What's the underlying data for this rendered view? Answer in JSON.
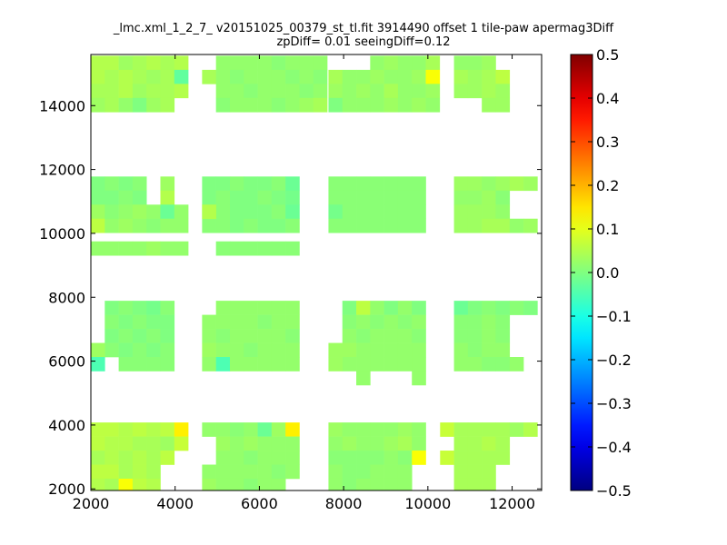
{
  "chart_data": {
    "type": "heatmap",
    "title": "_lmc.xml_1_2_7_ v20151025_00379_st_tl.fit 3914490 offset 1 tile-paw apermag3Diff",
    "subtitle": "zpDiff= 0.01 seeingDiff=0.12",
    "xlabel": "",
    "ylabel": "",
    "xlim": [
      2000,
      12700
    ],
    "ylim": [
      1950,
      15600
    ],
    "x_ticks": [
      "2000",
      "4000",
      "6000",
      "8000",
      "10000",
      "12000"
    ],
    "y_ticks": [
      "2000",
      "4000",
      "6000",
      "8000",
      "10000",
      "12000",
      "14000"
    ],
    "colorbar": {
      "colormap": "jet",
      "range": [
        -0.5,
        0.5
      ],
      "ticks": [
        "0.5",
        "0.4",
        "0.3",
        "0.2",
        "0.1",
        "0.0",
        "−0.1",
        "−0.2",
        "−0.3",
        "−0.4",
        "−0.5"
      ]
    },
    "cell_size": [
      330,
      440
    ],
    "blocks": [
      {
        "x0": 2000,
        "y_top": 15560,
        "cols": 7,
        "rows": 4,
        "values": [
          [
            0.05,
            0.05,
            0.03,
            0.04,
            0.05,
            0.04,
            0.05
          ],
          [
            0.05,
            0.04,
            0.05,
            0.04,
            0.03,
            0.04,
            -0.03
          ],
          [
            0.04,
            0.04,
            0.05,
            0.03,
            0.04,
            0.04,
            0.05
          ],
          [
            0.03,
            0.04,
            0.02,
            0.0,
            0.03,
            0.04,
            null
          ]
        ]
      },
      {
        "x0": 2000,
        "y_top": 11780,
        "cols": 7,
        "rows": 4,
        "values": [
          [
            0.0,
            0.01,
            0.0,
            0.01,
            null,
            0.03,
            null
          ],
          [
            0.0,
            0.0,
            0.01,
            0.0,
            null,
            0.05,
            null
          ],
          [
            0.03,
            0.01,
            0.02,
            0.03,
            0.02,
            -0.02,
            0.02
          ],
          [
            0.06,
            0.02,
            0.03,
            0.02,
            0.01,
            0.02,
            0.02
          ]
        ]
      },
      {
        "x0": 2000,
        "y_top": 9750,
        "cols": 7,
        "rows": 1,
        "values": [
          [
            0.02,
            0.02,
            0.02,
            0.02,
            0.03,
            0.02,
            0.02
          ]
        ]
      },
      {
        "x0": 2330,
        "y_top": 7890,
        "cols": 5,
        "rows": 4,
        "values": [
          [
            0.0,
            0.01,
            0.0,
            -0.01,
            0.01
          ],
          [
            0.01,
            0.0,
            0.01,
            0.0,
            0.0
          ],
          [
            0.0,
            0.01,
            0.0,
            0.01,
            0.0
          ],
          [
            0.01,
            0.0,
            0.01,
            0.0,
            0.01
          ]
        ]
      },
      {
        "x0": 2000,
        "y_top": 6570,
        "cols": 1,
        "rows": 2,
        "values": [
          [
            0.03
          ],
          [
            -0.05
          ]
        ]
      },
      {
        "x0": 2660,
        "y_top": 6130,
        "cols": 4,
        "rows": 1,
        "values": [
          [
            0.01,
            0.01,
            0.01,
            0.01
          ]
        ]
      },
      {
        "x0": 2000,
        "y_top": 4080,
        "cols": 6,
        "rows": 3,
        "values": [
          [
            0.06,
            0.06,
            0.05,
            0.06,
            0.05,
            0.06
          ],
          [
            0.06,
            0.05,
            0.05,
            0.04,
            0.04,
            0.03
          ],
          [
            0.04,
            0.05,
            0.04,
            0.05,
            0.04,
            0.06
          ]
        ]
      },
      {
        "x0": 3980,
        "y_top": 4080,
        "cols": 1,
        "rows": 1,
        "values": [
          [
            0.14
          ]
        ]
      },
      {
        "x0": 3980,
        "y_top": 3640,
        "cols": 1,
        "rows": 1,
        "values": [
          [
            0.07
          ]
        ]
      },
      {
        "x0": 2000,
        "y_top": 2760,
        "cols": 5,
        "rows": 2,
        "values": [
          [
            0.06,
            0.06,
            0.04,
            0.05,
            0.04
          ],
          [
            0.05,
            0.04,
            0.12,
            0.06,
            0.05
          ]
        ]
      },
      {
        "x0": 4640,
        "y_top": 15120,
        "cols": 1,
        "rows": 1,
        "values": [
          [
            0.04
          ]
        ]
      },
      {
        "x0": 4970,
        "y_top": 15560,
        "cols": 8,
        "rows": 4,
        "values": [
          [
            0.02,
            0.02,
            0.02,
            0.02,
            0.01,
            0.02,
            0.02,
            0.02
          ],
          [
            0.02,
            0.01,
            0.02,
            0.02,
            0.02,
            0.01,
            0.02,
            0.01
          ],
          [
            0.02,
            0.02,
            0.01,
            0.02,
            0.02,
            0.02,
            0.01,
            0.02
          ],
          [
            0.01,
            0.02,
            0.02,
            0.02,
            0.01,
            0.02,
            0.03,
            0.04
          ]
        ]
      },
      {
        "x0": 4640,
        "y_top": 11780,
        "cols": 7,
        "rows": 4,
        "values": [
          [
            0.0,
            0.0,
            0.01,
            0.0,
            0.0,
            0.01,
            -0.02
          ],
          [
            0.0,
            0.01,
            0.0,
            0.0,
            0.01,
            0.0,
            -0.01
          ],
          [
            0.01,
            0.01,
            0.0,
            0.0,
            0.0,
            0.01,
            -0.02
          ],
          [
            0.01,
            0.01,
            0.0,
            0.01,
            0.0,
            0.0,
            0.01
          ]
        ]
      },
      {
        "x0": 4640,
        "y_top": 10900,
        "cols": 1,
        "rows": 1,
        "values": [
          [
            0.05
          ]
        ]
      },
      {
        "x0": 4970,
        "y_top": 9750,
        "cols": 6,
        "rows": 1,
        "values": [
          [
            0.01,
            0.01,
            0.01,
            0.01,
            0.01,
            0.01
          ]
        ]
      },
      {
        "x0": 4640,
        "y_top": 7890,
        "cols": 7,
        "rows": 5,
        "values": [
          [
            null,
            0.02,
            0.02,
            0.02,
            0.02,
            0.02,
            0.02
          ],
          [
            0.02,
            0.02,
            0.02,
            0.02,
            0.01,
            0.02,
            0.02
          ],
          [
            0.02,
            0.01,
            0.02,
            0.02,
            0.02,
            0.02,
            0.01
          ],
          [
            0.03,
            0.02,
            0.02,
            0.01,
            0.02,
            0.02,
            0.02
          ],
          [
            0.02,
            -0.05,
            0.02,
            0.02,
            0.02,
            0.02,
            0.02
          ]
        ]
      },
      {
        "x0": 4640,
        "y_top": 4080,
        "cols": 7,
        "rows": 3,
        "values": [
          [
            0.02,
            0.02,
            0.01,
            0.02,
            -0.02,
            0.03,
            0.14
          ],
          [
            null,
            0.03,
            0.02,
            0.03,
            0.02,
            0.02,
            0.02
          ],
          [
            null,
            0.02,
            0.02,
            0.01,
            0.02,
            0.02,
            0.02
          ]
        ]
      },
      {
        "x0": 4640,
        "y_top": 2760,
        "cols": 7,
        "rows": 2,
        "values": [
          [
            0.02,
            0.02,
            0.02,
            0.02,
            0.02,
            0.01,
            0.02
          ],
          [
            0.03,
            0.02,
            0.02,
            0.01,
            0.02,
            0.02,
            null
          ]
        ]
      },
      {
        "x0": 7640,
        "y_top": 15560,
        "cols": 8,
        "rows": 4,
        "values": [
          [
            null,
            null,
            null,
            0.02,
            0.03,
            0.02,
            0.02,
            0.04
          ],
          [
            0.04,
            0.02,
            0.02,
            0.03,
            0.02,
            0.02,
            0.03,
            0.12
          ],
          [
            0.03,
            0.02,
            0.03,
            0.02,
            0.04,
            0.02,
            0.02,
            0.03
          ],
          [
            0.0,
            0.02,
            0.02,
            0.02,
            0.03,
            0.02,
            0.03,
            0.02
          ]
        ]
      },
      {
        "x0": 7640,
        "y_top": 11780,
        "cols": 7,
        "rows": 4,
        "values": [
          [
            0.01,
            0.01,
            0.01,
            0.01,
            0.01,
            0.01,
            0.01
          ],
          [
            0.01,
            0.01,
            0.01,
            0.01,
            0.01,
            0.01,
            0.01
          ],
          [
            -0.01,
            0.01,
            0.01,
            0.01,
            0.01,
            0.01,
            0.01
          ],
          [
            0.01,
            0.01,
            0.01,
            0.01,
            0.01,
            0.01,
            0.01
          ]
        ]
      },
      {
        "x0": 7970,
        "y_top": 7890,
        "cols": 6,
        "rows": 5,
        "values": [
          [
            0.0,
            0.06,
            0.02,
            0.0,
            0.02,
            0.0
          ],
          [
            0.01,
            0.02,
            0.01,
            0.02,
            0.01,
            0.02
          ],
          [
            0.02,
            0.01,
            0.02,
            0.02,
            0.02,
            0.01
          ],
          [
            0.03,
            0.02,
            0.02,
            0.02,
            0.02,
            0.02
          ],
          [
            0.02,
            0.02,
            0.02,
            0.02,
            0.02,
            0.02
          ]
        ]
      },
      {
        "x0": 7640,
        "y_top": 6570,
        "cols": 1,
        "rows": 2,
        "values": [
          [
            0.03
          ],
          [
            0.03
          ]
        ]
      },
      {
        "x0": 8300,
        "y_top": 5690,
        "cols": 1,
        "rows": 1,
        "values": [
          [
            0.02
          ]
        ]
      },
      {
        "x0": 9620,
        "y_top": 5690,
        "cols": 1,
        "rows": 1,
        "values": [
          [
            0.02
          ]
        ]
      },
      {
        "x0": 7640,
        "y_top": 4080,
        "cols": 7,
        "rows": 2,
        "values": [
          [
            0.03,
            0.02,
            0.02,
            0.02,
            0.02,
            0.03,
            0.02
          ],
          [
            0.02,
            0.03,
            0.02,
            0.02,
            0.03,
            0.04,
            0.02
          ]
        ]
      },
      {
        "x0": 7640,
        "y_top": 3200,
        "cols": 6,
        "rows": 3,
        "values": [
          [
            0.01,
            0.01,
            0.01,
            0.01,
            0.02,
            0.01
          ],
          [
            0.02,
            0.01,
            0.01,
            0.02,
            0.02,
            0.02
          ],
          [
            0.02,
            0.01,
            0.02,
            0.02,
            0.02,
            0.02
          ]
        ]
      },
      {
        "x0": 9620,
        "y_top": 3200,
        "cols": 1,
        "rows": 1,
        "values": [
          [
            0.12
          ]
        ]
      },
      {
        "x0": 10620,
        "y_top": 15560,
        "cols": 4,
        "rows": 4,
        "values": [
          [
            0.02,
            0.02,
            0.03,
            null
          ],
          [
            0.04,
            0.03,
            0.04,
            0.06
          ],
          [
            0.03,
            0.03,
            0.04,
            0.03
          ],
          [
            null,
            null,
            0.03,
            0.03
          ]
        ]
      },
      {
        "x0": 10620,
        "y_top": 11780,
        "cols": 6,
        "rows": 4,
        "values": [
          [
            0.03,
            0.03,
            0.02,
            0.03,
            0.04,
            0.03
          ],
          [
            0.02,
            0.02,
            0.03,
            0.01,
            null,
            null
          ],
          [
            0.03,
            0.03,
            0.03,
            0.02,
            null,
            null
          ],
          [
            0.03,
            0.03,
            0.04,
            0.04,
            0.02,
            0.03
          ]
        ]
      },
      {
        "x0": 10620,
        "y_top": 7890,
        "cols": 6,
        "rows": 5,
        "values": [
          [
            -0.02,
            0.0,
            0.01,
            0.0,
            0.01,
            0.0
          ],
          [
            0.01,
            0.01,
            0.02,
            0.01,
            null,
            null
          ],
          [
            0.01,
            0.01,
            0.02,
            0.01,
            null,
            null
          ],
          [
            0.02,
            0.01,
            0.02,
            0.02,
            null,
            null
          ],
          [
            0.02,
            0.02,
            0.01,
            0.01,
            0.02,
            null
          ]
        ]
      },
      {
        "x0": 10290,
        "y_top": 4080,
        "cols": 1,
        "rows": 1,
        "values": [
          [
            0.07
          ]
        ]
      },
      {
        "x0": 10290,
        "y_top": 3200,
        "cols": 1,
        "rows": 1,
        "values": [
          [
            0.07
          ]
        ]
      },
      {
        "x0": 10620,
        "y_top": 4080,
        "cols": 6,
        "rows": 3,
        "values": [
          [
            0.04,
            0.04,
            0.04,
            0.04,
            0.03,
            0.05
          ],
          [
            0.04,
            0.04,
            0.05,
            0.04,
            null,
            null
          ],
          [
            0.04,
            0.04,
            0.04,
            0.04,
            null,
            null
          ]
        ]
      },
      {
        "x0": 10620,
        "y_top": 2760,
        "cols": 4,
        "rows": 2,
        "values": [
          [
            0.04,
            0.04,
            0.04,
            null
          ],
          [
            0.04,
            0.04,
            0.04,
            null
          ]
        ]
      }
    ]
  }
}
